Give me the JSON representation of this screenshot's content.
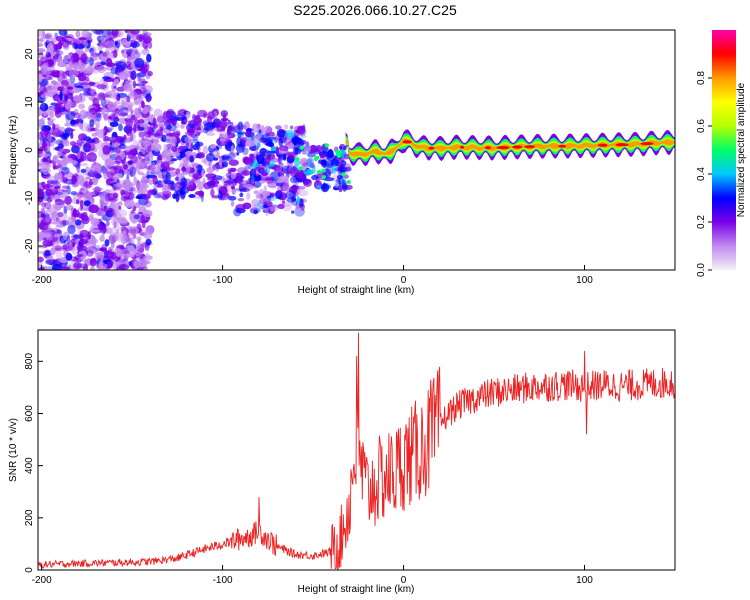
{
  "title": "S225.2026.066.10.27.C25",
  "chart_data": [
    {
      "type": "heatmap",
      "panel": "top",
      "xlabel": "Height of straight line (km)",
      "ylabel": "Frequency (Hz)",
      "xlim": [
        -202,
        150
      ],
      "ylim": [
        -25,
        25
      ],
      "xticks": [
        -200,
        -100,
        0,
        100
      ],
      "xtick_labels": [
        "-200",
        "-100",
        "0",
        "100"
      ],
      "yticks": [
        -20,
        -10,
        0,
        10,
        20
      ],
      "ytick_labels": [
        "-20",
        "-10",
        "0",
        "10",
        "20"
      ],
      "colorbar": {
        "label": "Normalized spectral amplitude",
        "range": [
          0,
          1
        ],
        "ticks": [
          0.0,
          0.2,
          0.4,
          0.6,
          0.8
        ],
        "tick_labels": [
          "0.0",
          "0.2",
          "0.4",
          "0.6",
          "0.8"
        ],
        "colors": [
          "#f2f0f8",
          "#c28af0",
          "#7a00e8",
          "#0000ff",
          "#00c8ff",
          "#00ff66",
          "#b4ff00",
          "#ffff00",
          "#ff9900",
          "#ff0000",
          "#ff00aa"
        ]
      },
      "trace": {
        "x": [
          -30,
          -25,
          -20,
          -15,
          -10,
          -5,
          0,
          10,
          20,
          30,
          40,
          50,
          60,
          70,
          80,
          90,
          100,
          110,
          120,
          130,
          140,
          150
        ],
        "y": [
          -0.5,
          -1,
          -0.7,
          -0.3,
          -0.8,
          0,
          2,
          0.5,
          0.3,
          0.6,
          0.5,
          0.4,
          0.6,
          0.7,
          0.8,
          0.8,
          0.9,
          1,
          1.1,
          1.2,
          1.5,
          1.6
        ]
      },
      "scatter_regions": [
        {
          "x": [
            -202,
            -140
          ],
          "y": [
            -25,
            25
          ],
          "level": "low"
        },
        {
          "x": [
            -140,
            -95
          ],
          "y": [
            -10,
            8
          ],
          "level": "low-mid"
        },
        {
          "x": [
            -95,
            -55
          ],
          "y": [
            -13,
            5
          ],
          "level": "mid"
        },
        {
          "x": [
            -55,
            -30
          ],
          "y": [
            -8,
            1
          ],
          "level": "mid"
        }
      ]
    },
    {
      "type": "line",
      "panel": "bottom",
      "xlabel": "Height of straight line (km)",
      "ylabel": "SNR (10 * v/v)",
      "xlim": [
        -202,
        150
      ],
      "ylim": [
        0,
        920
      ],
      "xticks": [
        -200,
        -100,
        0,
        100
      ],
      "xtick_labels": [
        "-200",
        "-100",
        "0",
        "100"
      ],
      "yticks": [
        0,
        200,
        400,
        600,
        800
      ],
      "ytick_labels": [
        "0",
        "200",
        "400",
        "600",
        "800"
      ],
      "color": "#ee2222",
      "series": [
        {
          "name": "SNR",
          "x": [
            -202,
            -180,
            -160,
            -140,
            -125,
            -110,
            -95,
            -85,
            -80,
            -75,
            -70,
            -60,
            -50,
            -40,
            -35,
            -30,
            -27,
            -25,
            -23,
            -20,
            -15,
            -10,
            -5,
            0,
            5,
            10,
            15,
            20,
            25,
            30,
            40,
            50,
            60,
            70,
            80,
            90,
            100,
            110,
            120,
            130,
            140,
            150
          ],
          "values": [
            20,
            25,
            28,
            32,
            45,
            80,
            110,
            130,
            150,
            120,
            90,
            60,
            55,
            70,
            110,
            250,
            440,
            460,
            380,
            300,
            330,
            360,
            370,
            420,
            440,
            470,
            500,
            560,
            600,
            630,
            660,
            680,
            690,
            700,
            705,
            710,
            700,
            710,
            705,
            710,
            715,
            720
          ]
        }
      ],
      "spikes": [
        {
          "x": -25,
          "value": 910
        },
        {
          "x": -26,
          "value": 820
        },
        {
          "x": 100,
          "value": 840
        },
        {
          "x": 101,
          "value": 520
        },
        {
          "x": 15,
          "value": 730
        },
        {
          "x": -80,
          "value": 280
        }
      ]
    }
  ]
}
